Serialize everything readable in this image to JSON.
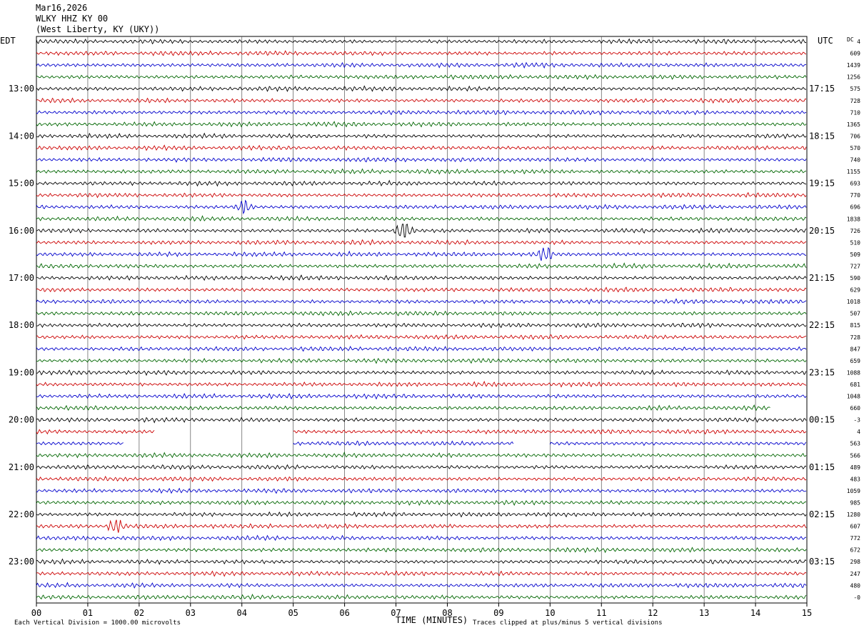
{
  "header": {
    "date": "Mar16,2026",
    "station": "WLKY HHZ KY 00",
    "location": "(West Liberty, KY (UKY))"
  },
  "chart_data": {
    "type": "line",
    "description_type": "helicorder",
    "left_timezone": "EDT",
    "right_timezone": "UTC",
    "dc_label": "DC",
    "x_ticks": [
      "00",
      "01",
      "02",
      "03",
      "04",
      "05",
      "06",
      "07",
      "08",
      "09",
      "10",
      "11",
      "12",
      "13",
      "14",
      "15"
    ],
    "xlim": [
      0,
      15
    ],
    "xlabel": "TIME (MINUTES)",
    "left_hour_labels": [
      "13:00",
      "14:00",
      "15:00",
      "16:00",
      "17:00",
      "18:00",
      "19:00",
      "20:00",
      "21:00",
      "22:00",
      "23:00"
    ],
    "right_hour_labels": [
      "17:15",
      "18:15",
      "19:15",
      "20:15",
      "21:15",
      "22:15",
      "23:15",
      "00:15",
      "01:15",
      "02:15",
      "03:15"
    ],
    "trace_colors": [
      "#000000",
      "#cc0000",
      "#0000cc",
      "#006600"
    ],
    "dc_offsets": [
      "4",
      "609",
      "1439",
      "1256",
      "575",
      "728",
      "710",
      "1365",
      "706",
      "570",
      "740",
      "1155",
      "693",
      "770",
      "696",
      "1838",
      "726",
      "510",
      "509",
      "727",
      "590",
      "629",
      "1018",
      "507",
      "815",
      "728",
      "847",
      "659",
      "1088",
      "681",
      "1048",
      "660",
      "-3",
      "4",
      "563",
      "566",
      "489",
      "483",
      "1059",
      "985",
      "1280",
      "607",
      "772",
      "672",
      "298",
      "247",
      "480",
      "-0"
    ],
    "trace_coverage": [
      [
        [
          0,
          15
        ]
      ],
      [
        [
          0,
          15
        ]
      ],
      [
        [
          0,
          15
        ]
      ],
      [
        [
          0,
          15
        ]
      ],
      [
        [
          0,
          15
        ]
      ],
      [
        [
          0,
          15
        ]
      ],
      [
        [
          0,
          15
        ]
      ],
      [
        [
          0,
          15
        ]
      ],
      [
        [
          0,
          15
        ]
      ],
      [
        [
          0,
          15
        ]
      ],
      [
        [
          0,
          15
        ]
      ],
      [
        [
          0,
          15
        ]
      ],
      [
        [
          0,
          15
        ]
      ],
      [
        [
          0,
          15
        ]
      ],
      [
        [
          0,
          15
        ]
      ],
      [
        [
          0,
          15
        ]
      ],
      [
        [
          0,
          15
        ]
      ],
      [
        [
          0,
          15
        ]
      ],
      [
        [
          0,
          15
        ]
      ],
      [
        [
          0,
          15
        ]
      ],
      [
        [
          0,
          15
        ]
      ],
      [
        [
          0,
          15
        ]
      ],
      [
        [
          0,
          15
        ]
      ],
      [
        [
          0,
          15
        ]
      ],
      [
        [
          0,
          15
        ]
      ],
      [
        [
          0,
          15
        ]
      ],
      [
        [
          0,
          15
        ]
      ],
      [
        [
          0,
          15
        ]
      ],
      [
        [
          0,
          15
        ]
      ],
      [
        [
          0,
          15
        ]
      ],
      [
        [
          0,
          15
        ]
      ],
      [
        [
          0,
          14.3
        ]
      ],
      [
        [
          0,
          15
        ]
      ],
      [
        [
          0,
          2.3
        ],
        [
          5,
          15
        ]
      ],
      [
        [
          0,
          1.7
        ],
        [
          5,
          9.3
        ],
        [
          10,
          15
        ]
      ],
      [
        [
          0,
          15
        ]
      ],
      [
        [
          0,
          15
        ]
      ],
      [
        [
          0,
          15
        ]
      ],
      [
        [
          0,
          15
        ]
      ],
      [
        [
          0,
          15
        ]
      ],
      [
        [
          0,
          15
        ]
      ],
      [
        [
          0,
          15
        ]
      ],
      [
        [
          0,
          15
        ]
      ],
      [
        [
          0,
          15
        ]
      ],
      [
        [
          0,
          15
        ]
      ],
      [
        [
          0,
          15
        ]
      ],
      [
        [
          0,
          15
        ]
      ],
      [
        [
          0,
          15
        ]
      ]
    ],
    "events": [
      {
        "trace": 16,
        "minute": 7.15,
        "amplitude": 2.6
      },
      {
        "trace": 14,
        "minute": 4.05,
        "amplitude": 1.6
      },
      {
        "trace": 18,
        "minute": 9.9,
        "amplitude": 1.5
      },
      {
        "trace": 41,
        "minute": 1.55,
        "amplitude": 1.6
      }
    ],
    "grid": true
  },
  "footer": {
    "left_text": "Each Vertical Division = 1000.00 microvolts",
    "right_text": "Traces clipped at plus/minus 5 vertical divisions"
  }
}
